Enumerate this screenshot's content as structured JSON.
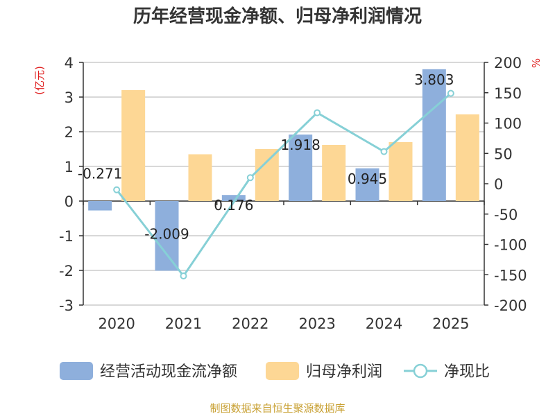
{
  "chart_data": {
    "type": "bar",
    "title": "历年经营现金净额、归母净利润情况",
    "categories": [
      "2020",
      "2021",
      "2022",
      "2023",
      "2024",
      "2025"
    ],
    "series": [
      {
        "name": "经营活动现金流净额",
        "type": "bar",
        "axis": "left",
        "color": "#8eafdc",
        "values": [
          -0.271,
          -2.009,
          0.176,
          1.918,
          0.945,
          3.803
        ],
        "labels": [
          "-0.271",
          "-2.009",
          "0.176",
          "1.918",
          "0.945",
          "3.803"
        ]
      },
      {
        "name": "归母净利润",
        "type": "bar",
        "axis": "left",
        "color": "#fdd795",
        "values": [
          3.2,
          1.35,
          1.5,
          1.62,
          1.7,
          2.5
        ]
      },
      {
        "name": "净现比",
        "type": "line",
        "axis": "right",
        "color": "#86d0d6",
        "values": [
          -10,
          -152,
          10,
          117,
          53,
          149
        ]
      }
    ],
    "y_left": {
      "unit": "(亿元)",
      "min": -3,
      "max": 4,
      "ticks": [
        4,
        3,
        2,
        1,
        0,
        -1,
        -2,
        -3
      ]
    },
    "y_right": {
      "unit": "%",
      "min": -200,
      "max": 200,
      "ticks": [
        200,
        150,
        100,
        50,
        0,
        -50,
        -100,
        -150,
        -200
      ]
    },
    "grid": true,
    "legend_position": "bottom"
  },
  "source": "制图数据来自恒生聚源数据库"
}
